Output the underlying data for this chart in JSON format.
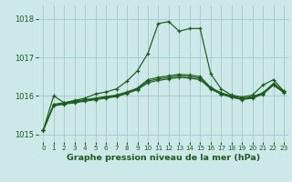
{
  "background_color": "#cce8e8",
  "grid_color": "#aacccc",
  "line_color": "#1a5c1a",
  "title": "Graphe pression niveau de la mer (hPa)",
  "xlim": [
    -0.5,
    23.5
  ],
  "ylim": [
    1014.8,
    1018.35
  ],
  "yticks": [
    1015,
    1016,
    1017,
    1018
  ],
  "xtick_labels": [
    "0",
    "1",
    "2",
    "3",
    "4",
    "5",
    "6",
    "7",
    "8",
    "9",
    "10",
    "11",
    "12",
    "13",
    "14",
    "15",
    "16",
    "17",
    "18",
    "19",
    "20",
    "21",
    "22",
    "23"
  ],
  "series1": [
    1015.1,
    1016.0,
    1015.82,
    1015.88,
    1015.94,
    1016.05,
    1016.1,
    1016.18,
    1016.38,
    1016.65,
    1017.1,
    1017.88,
    1017.93,
    1017.68,
    1017.75,
    1017.75,
    1016.58,
    1016.18,
    1016.02,
    1015.97,
    1016.02,
    1016.28,
    1016.42,
    1016.12
  ],
  "series2": [
    1015.1,
    1015.78,
    1015.82,
    1015.86,
    1015.9,
    1015.94,
    1015.98,
    1016.02,
    1016.1,
    1016.2,
    1016.42,
    1016.48,
    1016.52,
    1016.56,
    1016.54,
    1016.5,
    1016.22,
    1016.08,
    1016.0,
    1015.94,
    1015.98,
    1016.08,
    1016.32,
    1016.12
  ],
  "series3": [
    1015.1,
    1015.76,
    1015.8,
    1015.84,
    1015.88,
    1015.92,
    1015.96,
    1016.0,
    1016.08,
    1016.18,
    1016.38,
    1016.44,
    1016.48,
    1016.52,
    1016.5,
    1016.46,
    1016.2,
    1016.06,
    1015.98,
    1015.92,
    1015.96,
    1016.06,
    1016.3,
    1016.1
  ],
  "series4": [
    1015.1,
    1015.74,
    1015.78,
    1015.82,
    1015.86,
    1015.9,
    1015.94,
    1015.98,
    1016.06,
    1016.16,
    1016.34,
    1016.4,
    1016.44,
    1016.48,
    1016.46,
    1016.42,
    1016.18,
    1016.04,
    1015.96,
    1015.9,
    1015.94,
    1016.04,
    1016.28,
    1016.08
  ]
}
